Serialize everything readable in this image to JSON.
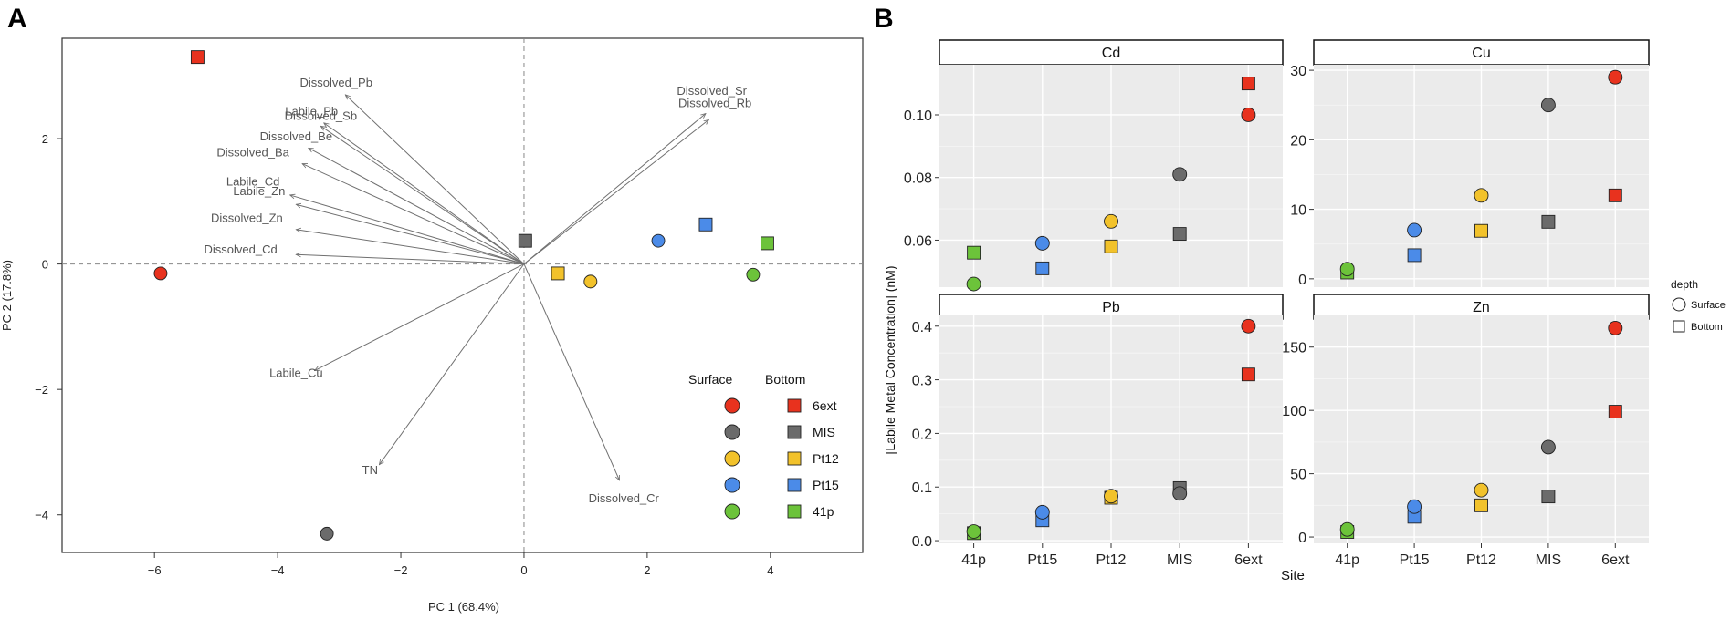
{
  "panels": {
    "a": "A",
    "b": "B"
  },
  "colors": {
    "6ext": "#e8321e",
    "MIS": "#6b6b6b",
    "Pt12": "#f2c22b",
    "Pt15": "#4b8be8",
    "41p": "#6cc33a",
    "arrow": "#707070",
    "strip_bg": "#ffffff",
    "panel_bg": "#ebebeb"
  },
  "chart_data": [
    {
      "type": "scatter",
      "name": "PCA biplot",
      "xlabel": "PC 1 (68.4%)",
      "ylabel": "PC 2 (17.8%)",
      "xlim": [
        -7.5,
        5.5
      ],
      "ylim": [
        -4.6,
        3.6
      ],
      "xticks": [
        -6,
        -4,
        -2,
        0,
        2,
        4
      ],
      "yticks": [
        -4,
        -2,
        0,
        2
      ],
      "points": [
        {
          "site": "6ext",
          "depth": "Surface",
          "x": -5.9,
          "y": -0.15
        },
        {
          "site": "6ext",
          "depth": "Bottom",
          "x": -5.3,
          "y": 3.3
        },
        {
          "site": "MIS",
          "depth": "Surface",
          "x": -3.2,
          "y": -4.3
        },
        {
          "site": "MIS",
          "depth": "Bottom",
          "x": 0.02,
          "y": 0.37
        },
        {
          "site": "Pt12",
          "depth": "Surface",
          "x": 1.08,
          "y": -0.28
        },
        {
          "site": "Pt12",
          "depth": "Bottom",
          "x": 0.55,
          "y": -0.15
        },
        {
          "site": "Pt15",
          "depth": "Surface",
          "x": 2.18,
          "y": 0.37
        },
        {
          "site": "Pt15",
          "depth": "Bottom",
          "x": 2.95,
          "y": 0.63
        },
        {
          "site": "41p",
          "depth": "Surface",
          "x": 3.72,
          "y": -0.17
        },
        {
          "site": "41p",
          "depth": "Bottom",
          "x": 3.95,
          "y": 0.33
        }
      ],
      "loadings": [
        {
          "label": "Dissolved_Pb",
          "x": -2.9,
          "y": 2.7,
          "lx": -3.05,
          "ly": 2.83
        },
        {
          "label": "Labile_Pb",
          "x": -3.25,
          "y": 2.25,
          "lx": -3.45,
          "ly": 2.37
        },
        {
          "label": "Dissolved_Sb",
          "x": -3.3,
          "y": 2.2,
          "lx": -3.3,
          "ly": 2.3
        },
        {
          "label": "Dissolved_Be",
          "x": -3.5,
          "y": 1.85,
          "lx": -3.7,
          "ly": 1.97
        },
        {
          "label": "Dissolved_Ba",
          "x": -3.6,
          "y": 1.6,
          "lx": -4.4,
          "ly": 1.72
        },
        {
          "label": "Labile_Cd",
          "x": -3.8,
          "y": 1.1,
          "lx": -4.4,
          "ly": 1.25
        },
        {
          "label": "Labile_Zn",
          "x": -3.7,
          "y": 0.95,
          "lx": -4.3,
          "ly": 1.1
        },
        {
          "label": "Dissolved_Zn",
          "x": -3.7,
          "y": 0.55,
          "lx": -4.5,
          "ly": 0.67
        },
        {
          "label": "Dissolved_Cd",
          "x": -3.7,
          "y": 0.15,
          "lx": -4.6,
          "ly": 0.17
        },
        {
          "label": "Dissolved_Sr",
          "x": 3.0,
          "y": 2.3,
          "lx": 3.05,
          "ly": 2.7
        },
        {
          "label": "Dissolved_Rb",
          "x": 2.95,
          "y": 2.4,
          "lx": 3.1,
          "ly": 2.5
        },
        {
          "label": "Labile_Cu",
          "x": -3.4,
          "y": -1.7,
          "lx": -3.7,
          "ly": -1.8
        },
        {
          "label": "TN",
          "x": -2.35,
          "y": -3.2,
          "lx": -2.5,
          "ly": -3.35
        },
        {
          "label": "Dissolved_Cr",
          "x": 1.55,
          "y": -3.45,
          "lx": 1.62,
          "ly": -3.8
        }
      ],
      "legend": {
        "surface_title": "Surface",
        "bottom_title": "Bottom",
        "sites": [
          "6ext",
          "MIS",
          "Pt12",
          "Pt15",
          "41p"
        ]
      }
    },
    {
      "type": "scatter",
      "name": "Labile metal concentration by site",
      "ylabel": "[Labile Metal Concentration] (nM)",
      "xlabel": "Site",
      "categories": [
        "41p",
        "Pt15",
        "Pt12",
        "MIS",
        "6ext"
      ],
      "legend": {
        "title": "depth",
        "items": [
          "Surface",
          "Bottom"
        ]
      },
      "facets": [
        {
          "title": "Cd",
          "ylim": [
            0.045,
            0.116
          ],
          "yticks": [
            0.06,
            0.08,
            0.1
          ],
          "yticklabels": [
            "0.06",
            "0.08",
            "0.10"
          ],
          "surface": [
            0.046,
            0.059,
            0.066,
            0.081,
            0.1
          ],
          "bottom": [
            0.056,
            0.051,
            0.058,
            0.062,
            0.11
          ]
        },
        {
          "title": "Cu",
          "ylim": [
            -1.2,
            30.8
          ],
          "yticks": [
            0,
            10,
            20,
            30
          ],
          "yticklabels": [
            "0",
            "10",
            "20",
            "30"
          ],
          "surface": [
            1.4,
            7.0,
            12.0,
            25.0,
            29.0
          ],
          "bottom": [
            0.9,
            3.4,
            6.9,
            8.2,
            12.0
          ]
        },
        {
          "title": "Pb",
          "ylim": [
            -0.005,
            0.42
          ],
          "yticks": [
            0.0,
            0.1,
            0.2,
            0.3,
            0.4
          ],
          "yticklabels": [
            "0.0",
            "0.1",
            "0.2",
            "0.3",
            "0.4"
          ],
          "surface": [
            0.017,
            0.053,
            0.083,
            0.088,
            0.4
          ],
          "bottom": [
            0.014,
            0.038,
            0.08,
            0.098,
            0.31
          ]
        },
        {
          "title": "Zn",
          "ylim": [
            -5,
            175
          ],
          "yticks": [
            0,
            50,
            100,
            150
          ],
          "yticklabels": [
            "0",
            "50",
            "100",
            "150"
          ],
          "surface": [
            6,
            24,
            37,
            71,
            165
          ],
          "bottom": [
            4,
            16,
            25,
            32,
            99
          ]
        }
      ]
    }
  ]
}
